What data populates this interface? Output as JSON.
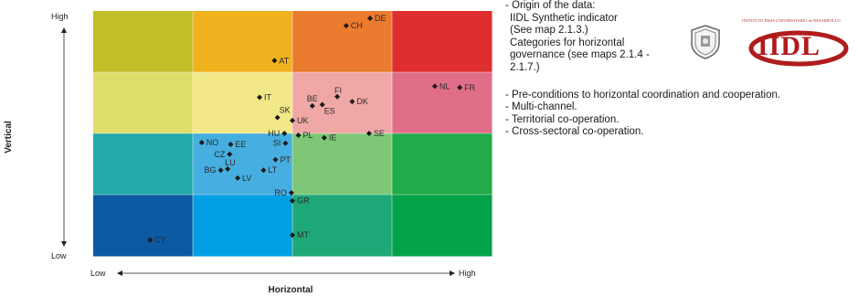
{
  "chart_data": {
    "type": "scatter",
    "xlabel": "Horizontal",
    "ylabel": "Vertical",
    "x_axis_ends": {
      "low": "Low",
      "high": "High"
    },
    "y_axis_ends": {
      "low": "Low",
      "high": "High"
    },
    "xlim": [
      0,
      4
    ],
    "ylim": [
      0,
      4
    ],
    "grid": true,
    "zones": [
      {
        "col": 0,
        "row": 3,
        "color": "#c0bf27"
      },
      {
        "col": 1,
        "row": 3,
        "color": "#f0b21f"
      },
      {
        "col": 2,
        "row": 3,
        "color": "#eb7b2e"
      },
      {
        "col": 3,
        "row": 3,
        "color": "#de2f2e"
      },
      {
        "col": 0,
        "row": 2,
        "color": "#dede6a"
      },
      {
        "col": 1,
        "row": 2,
        "color": "#f2e888"
      },
      {
        "col": 2,
        "row": 2,
        "color": "#f0a8a6"
      },
      {
        "col": 3,
        "row": 2,
        "color": "#e16e89"
      },
      {
        "col": 0,
        "row": 1,
        "color": "#24aaa8"
      },
      {
        "col": 1,
        "row": 1,
        "color": "#46aee0"
      },
      {
        "col": 2,
        "row": 1,
        "color": "#7dc776"
      },
      {
        "col": 3,
        "row": 1,
        "color": "#21ab4a"
      },
      {
        "col": 0,
        "row": 0,
        "color": "#0b5aa2"
      },
      {
        "col": 1,
        "row": 0,
        "color": "#009fe3"
      },
      {
        "col": 2,
        "row": 0,
        "color": "#1fa877"
      },
      {
        "col": 3,
        "row": 0,
        "color": "#05a24a"
      }
    ],
    "points": [
      {
        "label": "DE",
        "x": 2.78,
        "y": 3.88,
        "side": "right"
      },
      {
        "label": "CH",
        "x": 2.54,
        "y": 3.76,
        "side": "right"
      },
      {
        "label": "AT",
        "x": 1.82,
        "y": 3.19,
        "side": "right"
      },
      {
        "label": "NL",
        "x": 3.43,
        "y": 2.77,
        "side": "right"
      },
      {
        "label": "FR",
        "x": 3.68,
        "y": 2.75,
        "side": "right"
      },
      {
        "label": "IT",
        "x": 1.67,
        "y": 2.59,
        "side": "right"
      },
      {
        "label": "FI",
        "x": 2.45,
        "y": 2.6,
        "side": "top"
      },
      {
        "label": "BE",
        "x": 2.2,
        "y": 2.45,
        "side": "topleft"
      },
      {
        "label": "DK",
        "x": 2.6,
        "y": 2.52,
        "side": "right"
      },
      {
        "label": "ES",
        "x": 2.3,
        "y": 2.47,
        "side": "belowright"
      },
      {
        "label": "SK",
        "x": 1.85,
        "y": 2.26,
        "side": "topright"
      },
      {
        "label": "UK",
        "x": 2.0,
        "y": 2.21,
        "side": "right"
      },
      {
        "label": "HU",
        "x": 1.92,
        "y": 2.0,
        "side": "left"
      },
      {
        "label": "SE",
        "x": 2.77,
        "y": 2.0,
        "side": "right"
      },
      {
        "label": "PL",
        "x": 2.06,
        "y": 1.97,
        "side": "right"
      },
      {
        "label": "IE",
        "x": 2.32,
        "y": 1.93,
        "side": "right"
      },
      {
        "label": "SI",
        "x": 1.93,
        "y": 1.84,
        "side": "left"
      },
      {
        "label": "NO",
        "x": 1.09,
        "y": 1.85,
        "side": "right"
      },
      {
        "label": "EE",
        "x": 1.38,
        "y": 1.82,
        "side": "right"
      },
      {
        "label": "CZ",
        "x": 1.37,
        "y": 1.66,
        "side": "left"
      },
      {
        "label": "PT",
        "x": 1.83,
        "y": 1.57,
        "side": "right"
      },
      {
        "label": "LU",
        "x": 1.35,
        "y": 1.42,
        "side": "top"
      },
      {
        "label": "BG",
        "x": 1.28,
        "y": 1.4,
        "side": "left"
      },
      {
        "label": "LT",
        "x": 1.71,
        "y": 1.4,
        "side": "right"
      },
      {
        "label": "LV",
        "x": 1.45,
        "y": 1.27,
        "side": "right"
      },
      {
        "label": "RO",
        "x": 1.99,
        "y": 1.03,
        "side": "left"
      },
      {
        "label": "GR",
        "x": 2.0,
        "y": 0.9,
        "side": "right"
      },
      {
        "label": "MT",
        "x": 2.0,
        "y": 0.34,
        "side": "right"
      },
      {
        "label": "CY",
        "x": 0.57,
        "y": 0.26,
        "side": "right"
      }
    ]
  },
  "notes": {
    "origin": [
      "- Origin of the data:",
      "  IIDL Synthetic indicator",
      "  (See map 2.1.3.)",
      "  Categories for horizontal",
      "  governance (see maps 2.1.4 -",
      "  2.1.7.)"
    ],
    "bullets": [
      "- Pre-conditions to horizontal coordination and cooperation.",
      "- Multi-channel.",
      "- Territorial co-operation.",
      "- Cross-sectoral co-operation."
    ]
  },
  "logos": {
    "seal_icon": "university-seal-icon",
    "iidl_caption": "INSTITUTO IDEIS UNIVERSITARIO de DESARROLLO",
    "iidl_word": "IIDL",
    "iidl_color": "#b01c1c"
  }
}
